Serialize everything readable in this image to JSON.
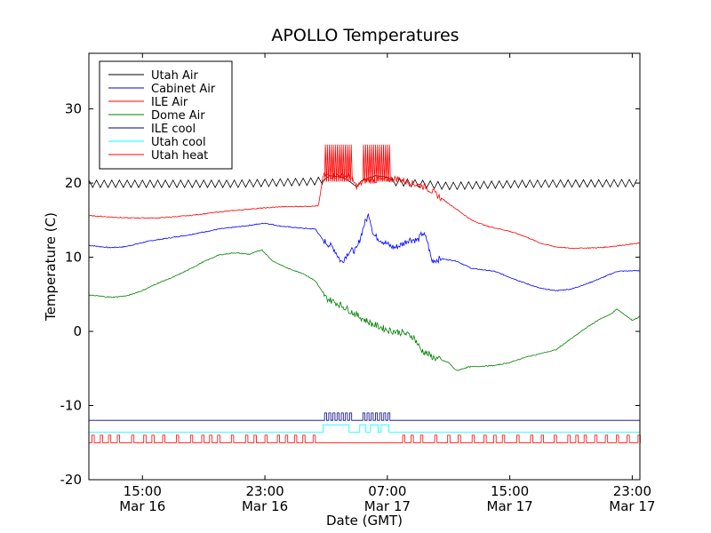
{
  "chart_data": {
    "type": "line",
    "title": "APOLLO Temperatures",
    "xlabel": "Date (GMT)",
    "ylabel": "Temperature (C)",
    "xlim": [
      11.5,
      47.5
    ],
    "ylim": [
      -20,
      37.5
    ],
    "yticks": [
      -20,
      -10,
      0,
      10,
      20,
      30
    ],
    "ytick_labels": [
      "-20",
      "-10",
      "0",
      "10",
      "20",
      "30"
    ],
    "xticks": [
      {
        "x": 15,
        "time": "15:00",
        "date": "Mar 16"
      },
      {
        "x": 23,
        "time": "23:00",
        "date": "Mar 16"
      },
      {
        "x": 31,
        "time": "07:00",
        "date": "Mar 17"
      },
      {
        "x": 39,
        "time": "15:00",
        "date": "Mar 17"
      },
      {
        "x": 47,
        "time": "23:00",
        "date": "Mar 17"
      }
    ],
    "legend_position": "top-left",
    "series": [
      {
        "name": "Utah Air",
        "color": "#000000",
        "shape": "saw",
        "base": 19.9,
        "amp": 0.5,
        "period": 0.5,
        "points": [
          [
            11.5,
            19.9
          ],
          [
            21,
            19.9
          ],
          [
            26,
            20.2
          ],
          [
            28,
            20.6
          ],
          [
            30,
            20.3
          ],
          [
            32,
            20.1
          ],
          [
            35,
            19.6
          ],
          [
            40,
            19.9
          ],
          [
            47.5,
            20.0
          ]
        ],
        "override": [
          [
            26.8,
            20.3
          ],
          [
            27.2,
            21.0
          ],
          [
            28.0,
            20.8
          ],
          [
            28.4,
            20.4
          ],
          [
            29,
            19.5
          ],
          [
            29.3,
            20.3
          ],
          [
            30.2,
            21.0
          ],
          [
            31,
            20.8
          ],
          [
            31.3,
            20.4
          ]
        ]
      },
      {
        "name": "Cabinet Air",
        "color": "#0000ff",
        "shape": "smooth",
        "points": [
          [
            11.5,
            11.6
          ],
          [
            12.8,
            11.3
          ],
          [
            13.8,
            11.4
          ],
          [
            15.5,
            12.2
          ],
          [
            18,
            13
          ],
          [
            20,
            13.8
          ],
          [
            22,
            14.3
          ],
          [
            23,
            14.6
          ],
          [
            24,
            14.2
          ],
          [
            25.5,
            13.9
          ],
          [
            26.3,
            13.8
          ],
          [
            26.8,
            12.3
          ],
          [
            27.5,
            11.2
          ],
          [
            28.0,
            9.3
          ],
          [
            28.5,
            10.8
          ],
          [
            29.0,
            11.0
          ],
          [
            29.5,
            14.5
          ],
          [
            29.8,
            15.8
          ],
          [
            30.1,
            13
          ],
          [
            30.6,
            12.3
          ],
          [
            31.2,
            11.5
          ],
          [
            31.5,
            11.3
          ],
          [
            32,
            11.8
          ],
          [
            32.4,
            12.4
          ],
          [
            33,
            12.3
          ],
          [
            33.3,
            13.3
          ],
          [
            33.6,
            12.3
          ],
          [
            33.9,
            9.5
          ],
          [
            34.5,
            9.8
          ],
          [
            35.5,
            9.5
          ],
          [
            36.5,
            8.5
          ],
          [
            38,
            8.1
          ],
          [
            40,
            6.5
          ],
          [
            41,
            5.8
          ],
          [
            42,
            5.5
          ],
          [
            43,
            5.7
          ],
          [
            44,
            6.4
          ],
          [
            45,
            7.2
          ],
          [
            46,
            8.1
          ],
          [
            47.5,
            8.2
          ]
        ]
      },
      {
        "name": "ILE Air",
        "color": "#ff0000",
        "shape": "smooth",
        "points": [
          [
            11.5,
            15.6
          ],
          [
            14,
            15.3
          ],
          [
            16,
            15.3
          ],
          [
            18,
            15.6
          ],
          [
            20,
            16.1
          ],
          [
            22,
            16.5
          ],
          [
            24,
            16.8
          ],
          [
            26.5,
            16.9
          ],
          [
            26.8,
            21
          ],
          [
            28.5,
            21
          ],
          [
            29,
            19.5
          ],
          [
            29.5,
            20.3
          ],
          [
            31,
            20.5
          ],
          [
            31.7,
            20.6
          ],
          [
            32.5,
            20
          ],
          [
            33.5,
            19.5
          ],
          [
            34.5,
            18
          ],
          [
            35.5,
            16.5
          ],
          [
            36.5,
            15
          ],
          [
            37.5,
            14.2
          ],
          [
            39,
            13.5
          ],
          [
            40,
            12.8
          ],
          [
            41,
            11.9
          ],
          [
            42,
            11.4
          ],
          [
            43,
            11.2
          ],
          [
            45,
            11.3
          ],
          [
            47.5,
            11.9
          ]
        ]
      },
      {
        "name": "Dome Air",
        "color": "#008000",
        "shape": "smooth",
        "points": [
          [
            11.5,
            4.9
          ],
          [
            13,
            4.6
          ],
          [
            14,
            4.8
          ],
          [
            15,
            5.5
          ],
          [
            16,
            6.5
          ],
          [
            17,
            7.3
          ],
          [
            18,
            8.3
          ],
          [
            19,
            9.4
          ],
          [
            20,
            10.3
          ],
          [
            21,
            10.6
          ],
          [
            22,
            10.4
          ],
          [
            22.8,
            11
          ],
          [
            23.5,
            9.5
          ],
          [
            24.5,
            8.5
          ],
          [
            25.5,
            7.8
          ],
          [
            26.3,
            6.8
          ],
          [
            27,
            4.5
          ],
          [
            28,
            3.5
          ],
          [
            29,
            2.2
          ],
          [
            30,
            1
          ],
          [
            31,
            0.2
          ],
          [
            32,
            -0.2
          ],
          [
            32.7,
            -0.7
          ],
          [
            33.2,
            -2.5
          ],
          [
            34,
            -3.5
          ],
          [
            35,
            -4.2
          ],
          [
            35.5,
            -5.3
          ],
          [
            36.3,
            -4.8
          ],
          [
            38,
            -4.6
          ],
          [
            39,
            -4.2
          ],
          [
            40,
            -3.5
          ],
          [
            41,
            -3.0
          ],
          [
            42,
            -2.5
          ],
          [
            43,
            -1.0
          ],
          [
            44,
            0.5
          ],
          [
            45,
            1.8
          ],
          [
            45.5,
            2.2
          ],
          [
            46,
            3.0
          ],
          [
            47,
            1.5
          ],
          [
            47.5,
            2.0
          ]
        ]
      },
      {
        "name": "ILE cool",
        "color": "#00007f",
        "shape": "pulse",
        "base": -12,
        "high": -11,
        "bursts": [
          [
            26.9,
            28.7
          ],
          [
            29.4,
            31.1
          ]
        ],
        "width": 0.13
      },
      {
        "name": "Utah cool",
        "color": "#00ffff",
        "shape": "step",
        "points": [
          [
            11.5,
            -13.6
          ],
          [
            26.8,
            -13.6
          ],
          [
            26.8,
            -12.6
          ],
          [
            28.5,
            -12.6
          ],
          [
            28.5,
            -13.6
          ],
          [
            29.2,
            -13.6
          ],
          [
            29.2,
            -12.6
          ],
          [
            29.6,
            -12.6
          ],
          [
            29.6,
            -13.6
          ],
          [
            29.9,
            -13.6
          ],
          [
            29.9,
            -12.6
          ],
          [
            30.4,
            -12.6
          ],
          [
            30.4,
            -13.6
          ],
          [
            30.6,
            -13.6
          ],
          [
            30.6,
            -12.6
          ],
          [
            31.1,
            -12.6
          ],
          [
            31.1,
            -13.6
          ],
          [
            47.5,
            -13.6
          ]
        ]
      },
      {
        "name": "Utah heat",
        "color": "#ff0000",
        "shape": "pulse",
        "base": -15,
        "high": -14,
        "bursts": [
          [
            11.7,
            26.4
          ],
          [
            32.0,
            47.5
          ]
        ],
        "width": 0.15
      }
    ]
  }
}
